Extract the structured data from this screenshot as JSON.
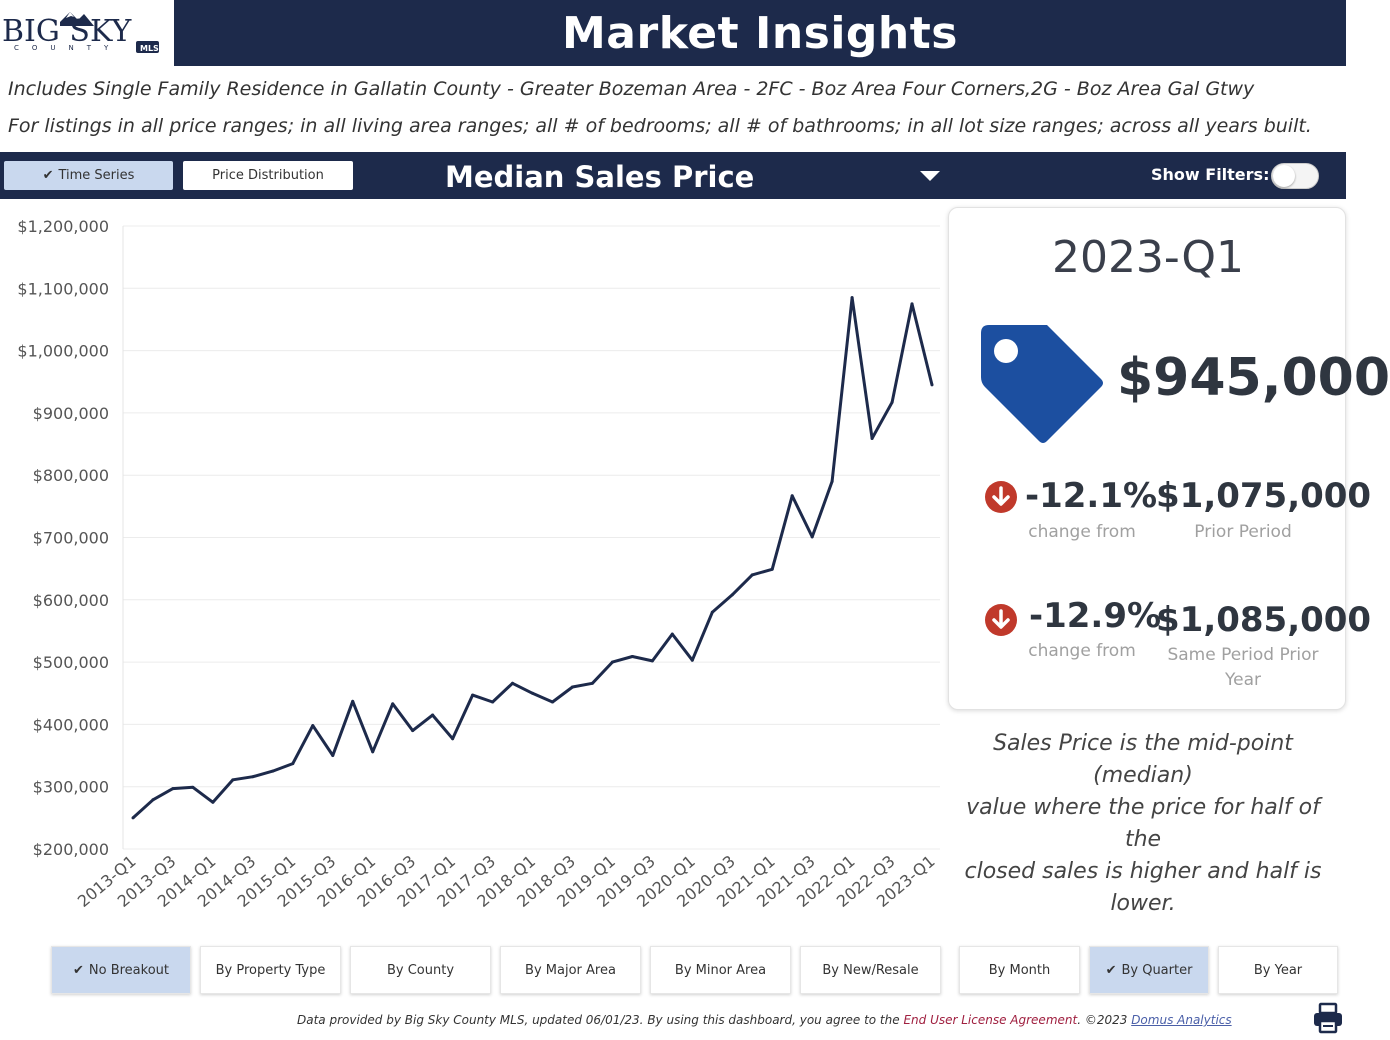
{
  "header": {
    "logo_text": "BIG SKY",
    "logo_sub": "COUNTY",
    "logo_badge": "MLS",
    "title": "Market Insights"
  },
  "subtitles": [
    "Includes Single Family Residence in Gallatin County - Greater Bozeman Area - 2FC - Boz Area Four Corners,2G - Boz Area Gal Gtwy",
    "For listings in all price ranges; in all living area ranges; all # of bedrooms; all # of bathrooms; in all lot size ranges; across all years built."
  ],
  "toolbar": {
    "time_series": "Time Series",
    "price_distribution": "Price Distribution",
    "metric": "Median Sales Price",
    "show_filters": "Show Filters:"
  },
  "stats": {
    "period": "2023-Q1",
    "value": "$945,000",
    "prior": {
      "pct": "-12.1%",
      "value": "$1,075,000",
      "caption": "change from",
      "label": "Prior Period"
    },
    "yoy": {
      "pct": "-12.9%",
      "value": "$1,085,000",
      "caption": "change from",
      "label_1": "Same Period Prior",
      "label_2": "Year"
    },
    "definition_1": "Sales Price is the mid-point (median)",
    "definition_2": "value where the price for half of the",
    "definition_3": "closed sales is higher and half is lower."
  },
  "group_buttons": [
    "No Breakout",
    "By Property Type",
    "By County",
    "By Major Area",
    "By Minor Area",
    "By New/Resale",
    "By Month",
    "By Quarter",
    "By Year"
  ],
  "footer": {
    "part1": "Data provided by Big Sky County MLS, updated 06/01/23.  By using this dashboard, you agree to the ",
    "eula": "End User License Agreement",
    "part2": ".  ©2023 ",
    "domus": "Domus Analytics"
  },
  "colors": {
    "navy": "#1d2a4b",
    "active_button": "#c9d8ee",
    "tag_blue": "#1c4fa0",
    "down_red": "#c0392b"
  },
  "chart_data": {
    "type": "line",
    "ylim": [
      200000,
      1200000
    ],
    "y_ticks": [
      200000,
      300000,
      400000,
      500000,
      600000,
      700000,
      800000,
      900000,
      1000000,
      1100000,
      1200000
    ],
    "y_tick_labels": [
      "$200,000",
      "$300,000",
      "$400,000",
      "$500,000",
      "$600,000",
      "$700,000",
      "$800,000",
      "$900,000",
      "$1,000,000",
      "$1,100,000",
      "$1,200,000"
    ],
    "x_tick_labels": [
      "2013-Q1",
      "2013-Q3",
      "2014-Q1",
      "2014-Q3",
      "2015-Q1",
      "2015-Q3",
      "2016-Q1",
      "2016-Q3",
      "2017-Q1",
      "2017-Q3",
      "2018-Q1",
      "2018-Q3",
      "2019-Q1",
      "2019-Q3",
      "2020-Q1",
      "2020-Q3",
      "2021-Q1",
      "2021-Q3",
      "2022-Q1",
      "2022-Q3",
      "2023-Q1"
    ],
    "categories": [
      "2013-Q1",
      "2013-Q2",
      "2013-Q3",
      "2013-Q4",
      "2014-Q1",
      "2014-Q2",
      "2014-Q3",
      "2014-Q4",
      "2015-Q1",
      "2015-Q2",
      "2015-Q3",
      "2015-Q4",
      "2016-Q1",
      "2016-Q2",
      "2016-Q3",
      "2016-Q4",
      "2017-Q1",
      "2017-Q2",
      "2017-Q3",
      "2017-Q4",
      "2018-Q1",
      "2018-Q2",
      "2018-Q3",
      "2018-Q4",
      "2019-Q1",
      "2019-Q2",
      "2019-Q3",
      "2019-Q4",
      "2020-Q1",
      "2020-Q2",
      "2020-Q3",
      "2020-Q4",
      "2021-Q1",
      "2021-Q2",
      "2021-Q3",
      "2021-Q4",
      "2022-Q1",
      "2022-Q2",
      "2022-Q3",
      "2022-Q4",
      "2023-Q1"
    ],
    "values": [
      250000,
      279000,
      297000,
      299000,
      275000,
      311000,
      316000,
      325000,
      337000,
      398000,
      350000,
      437000,
      356000,
      433000,
      390000,
      415000,
      377000,
      447000,
      436000,
      466000,
      450000,
      436000,
      460000,
      466000,
      500000,
      509000,
      502000,
      545000,
      503000,
      580000,
      608000,
      640000,
      649000,
      767000,
      701000,
      790000,
      1085000,
      859000,
      917000,
      1075000,
      945000
    ],
    "grid": true,
    "line_color": "#1d2a4b"
  }
}
